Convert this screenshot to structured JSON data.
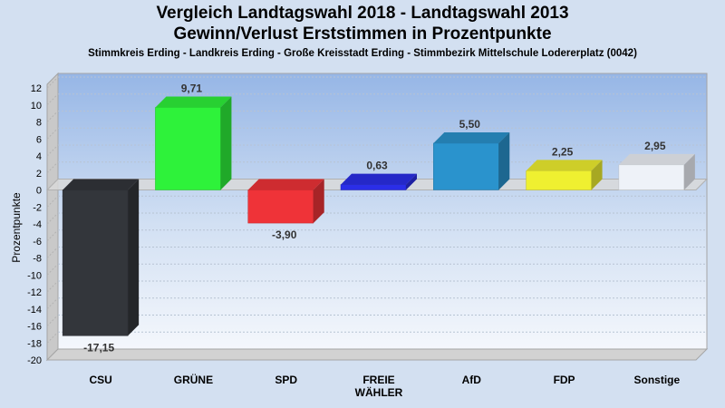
{
  "header": {
    "title_line1": "Vergleich Landtagswahl 2018 - Landtagswahl 2013",
    "title_line2": "Gewinn/Verlust Erststimmen in Prozentpunkte",
    "subtitle": "Stimmkreis Erding - Landkreis Erding - Große Kreisstadt Erding - Stimmbezirk Mittelschule Lodererplatz (0042)"
  },
  "chart_data": {
    "type": "bar",
    "title": "Vergleich Landtagswahl 2018 - Landtagswahl 2013 Gewinn/Verlust Erststimmen in Prozentpunkte",
    "subtitle": "Stimmkreis Erding - Landkreis Erding - Große Kreisstadt Erding - Stimmbezirk Mittelschule Lodererplatz (0042)",
    "xlabel": "",
    "ylabel": "Prozentpunkte",
    "ylim": [
      -20,
      12
    ],
    "yticks": [
      12,
      10,
      8,
      6,
      4,
      2,
      0,
      -2,
      -4,
      -6,
      -8,
      -10,
      -12,
      -14,
      -16,
      -18,
      -20
    ],
    "grid": true,
    "legend": "none",
    "categories": [
      [
        "CSU"
      ],
      [
        "GRÜNE"
      ],
      [
        "SPD"
      ],
      [
        "FREIE",
        "WÄHLER"
      ],
      [
        "AfD"
      ],
      [
        "FDP"
      ],
      [
        "Sonstige"
      ]
    ],
    "values": [
      -17.15,
      9.71,
      -3.9,
      0.63,
      5.5,
      2.25,
      2.95
    ],
    "labels": [
      "-17,15",
      "9,71",
      "-3,90",
      "0,63",
      "5,50",
      "2,25",
      "2,95"
    ],
    "colors": [
      "#33363b",
      "#2ef23a",
      "#ef3338",
      "#2b2ee8",
      "#2a93cd",
      "#eff030",
      "#eef2f8"
    ]
  }
}
